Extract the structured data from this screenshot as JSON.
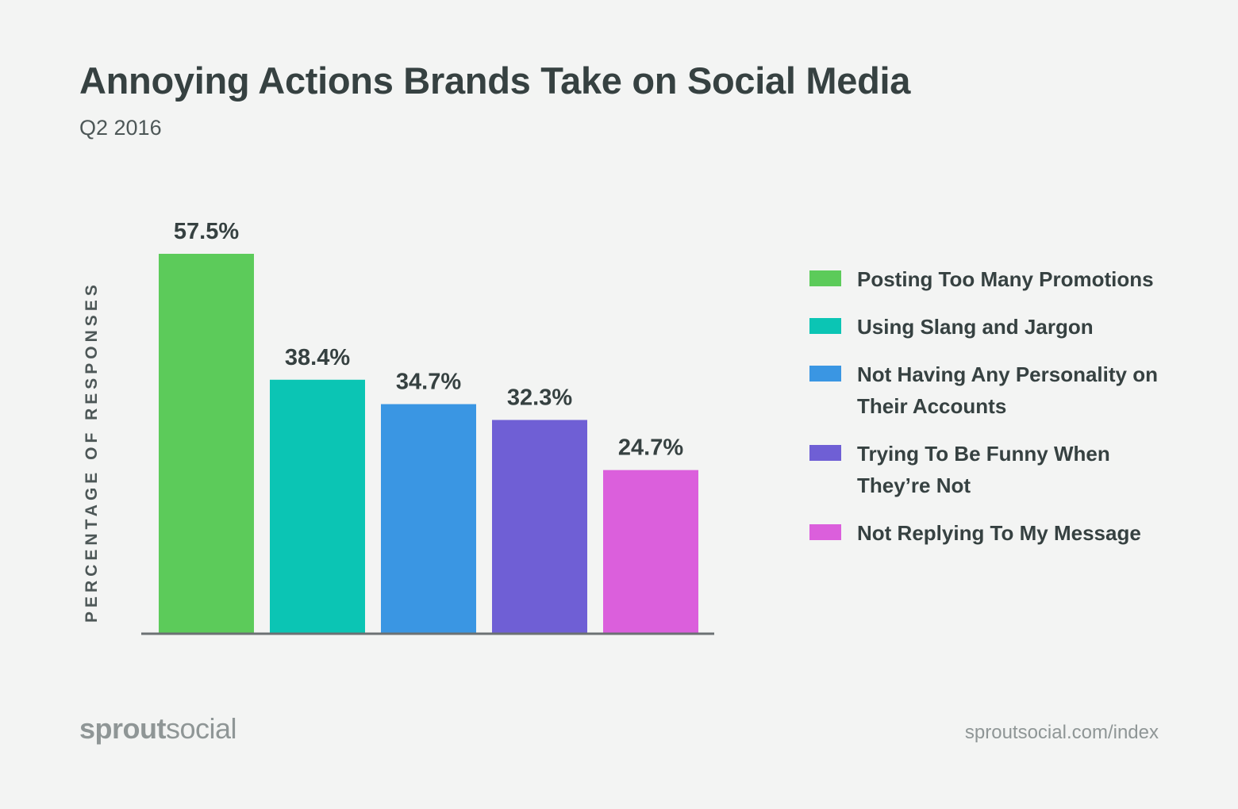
{
  "chart_data": {
    "type": "bar",
    "title": "Annoying Actions Brands Take on Social Media",
    "subtitle": "Q2 2016",
    "ylabel": "PERCENTAGE OF RESPONSES",
    "xlabel": "",
    "ylim": [
      0,
      57.5
    ],
    "grid": false,
    "legend_position": "right",
    "categories": [
      "Posting Too Many Promotions",
      "Using Slang and Jargon",
      "Not Having Any Personality on Their Accounts",
      "Trying To Be Funny When They’re Not",
      "Not Replying To My Message"
    ],
    "values": [
      57.5,
      38.4,
      34.7,
      32.3,
      24.7
    ],
    "data_labels": [
      "57.5%",
      "38.4%",
      "34.7%",
      "32.3%",
      "24.7%"
    ],
    "colors": [
      "#5ccb5a",
      "#0bc5b4",
      "#3a96e3",
      "#6f5fd5",
      "#db5fdc"
    ]
  },
  "footer": {
    "logo_bold": "sprout",
    "logo_light": "social",
    "url": "sproutsocial.com/index"
  }
}
